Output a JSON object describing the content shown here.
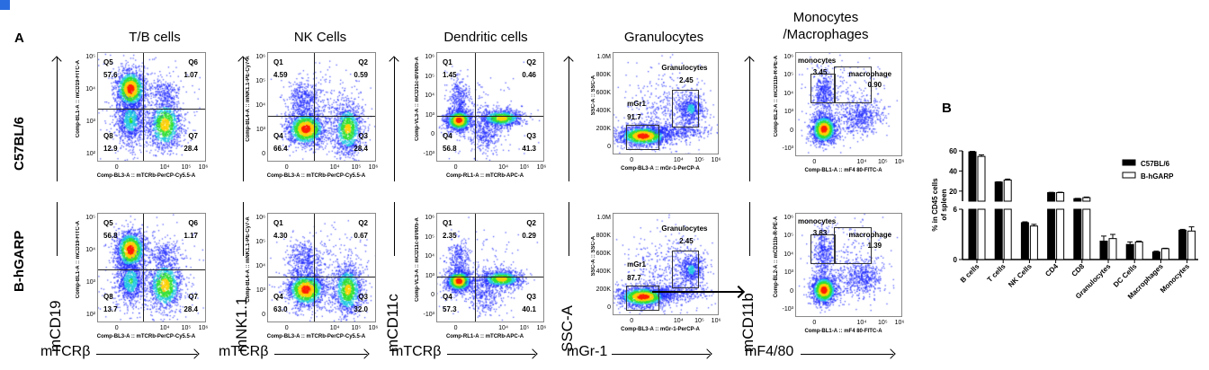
{
  "panels": {
    "a": "A",
    "b": "B"
  },
  "rows": [
    "C57BL/6",
    "B-hGARP"
  ],
  "columns": [
    {
      "title": "T/B cells",
      "ylabel": "mCD19",
      "xlabel": "mTCRβ",
      "x_axis": "Comp-BL3-A :: mTCRb-PerCP-Cy5.5-A",
      "y_axis": "Comp-BL1-A :: mCD19-FITC-A",
      "xticks": [
        "0",
        "10⁴",
        "10⁵",
        "10⁶"
      ],
      "yticks": [
        "10⁵",
        "10⁴",
        "10³",
        "10²"
      ],
      "gates": [
        [
          {
            "name": "Q5",
            "value": "57.6"
          },
          {
            "name": "Q6",
            "value": "1.07"
          },
          {
            "name": "Q8",
            "value": "12.9"
          },
          {
            "name": "Q7",
            "value": "28.4"
          }
        ],
        [
          {
            "name": "Q5",
            "value": "56.8"
          },
          {
            "name": "Q6",
            "value": "1.17"
          },
          {
            "name": "Q8",
            "value": "13.7"
          },
          {
            "name": "Q7",
            "value": "28.4"
          }
        ]
      ]
    },
    {
      "title": "NK Cells",
      "ylabel": "mNK1.1",
      "xlabel": "mTCRβ",
      "x_axis": "Comp-BL3-A :: mTCRb-PerCP-Cy5.5-A",
      "y_axis": "Comp-BL4-A :: mNK1.1-PE-Cy7-A",
      "xticks": [
        "0",
        "10⁴",
        "10⁵",
        "10⁶"
      ],
      "yticks": [
        "10⁶",
        "10⁵",
        "10⁴",
        "10³",
        "0"
      ],
      "gates": [
        [
          {
            "name": "Q1",
            "value": "4.59"
          },
          {
            "name": "Q2",
            "value": "0.59"
          },
          {
            "name": "Q4",
            "value": "66.4"
          },
          {
            "name": "Q3",
            "value": "28.4"
          }
        ],
        [
          {
            "name": "Q1",
            "value": "4.30"
          },
          {
            "name": "Q2",
            "value": "0.67"
          },
          {
            "name": "Q4",
            "value": "63.0"
          },
          {
            "name": "Q3",
            "value": "32.0"
          }
        ]
      ]
    },
    {
      "title": "Dendritic cells",
      "ylabel": "mCD11c",
      "xlabel": "mTCRβ",
      "x_axis": "Comp-RL1-A :: mTCRb-APC-A",
      "y_axis": "Comp-VL3-A :: mCD11c-BV605-A",
      "xticks": [
        "0",
        "10⁴",
        "10⁵",
        "10⁶"
      ],
      "yticks": [
        "10⁶",
        "10⁵",
        "10⁴",
        "10³",
        "0",
        "-10³"
      ],
      "gates": [
        [
          {
            "name": "Q1",
            "value": "1.45"
          },
          {
            "name": "Q2",
            "value": "0.46"
          },
          {
            "name": "Q4",
            "value": "56.8"
          },
          {
            "name": "Q3",
            "value": "41.3"
          }
        ],
        [
          {
            "name": "Q1",
            "value": "2.35"
          },
          {
            "name": "Q2",
            "value": "0.29"
          },
          {
            "name": "Q4",
            "value": "57.3"
          },
          {
            "name": "Q3",
            "value": "40.1"
          }
        ]
      ]
    },
    {
      "title": "Granulocytes",
      "ylabel": "SSC-A",
      "xlabel": "mGr-1",
      "x_axis": "Comp-BL3-A :: mGr-1-PerCP-A",
      "y_axis": "SSC-A :: SSC-A",
      "xticks": [
        "0",
        "10⁴",
        "10⁵",
        "10⁶"
      ],
      "yticks": [
        "1.0M",
        "800K",
        "600K",
        "400K",
        "200K",
        "0"
      ],
      "gates": [
        [
          {
            "name": "Granulocytes",
            "value": "2.45"
          },
          {
            "name": "mGr1",
            "value": "91.7"
          }
        ],
        [
          {
            "name": "Granulocytes",
            "value": "2.45"
          },
          {
            "name": "mGr1",
            "value": "87.7"
          }
        ]
      ]
    },
    {
      "title": "Monocytes\n/Macrophages",
      "title_lines": [
        "Monocytes",
        "/Macrophages"
      ],
      "ylabel": "mCD11b",
      "xlabel": "mF4/80",
      "x_axis": "Comp-BL1-A :: mF4 80-FITC-A",
      "y_axis": "Comp-BL2-A :: mCD11b-R-PE-A",
      "xticks": [
        "0",
        "10⁴",
        "10⁵",
        "10⁶"
      ],
      "yticks": [
        "10⁶",
        "10⁵",
        "10⁴",
        "10³",
        "0",
        "-10³"
      ],
      "gates": [
        [
          {
            "name": "monocytes",
            "value": "3.45"
          },
          {
            "name": "macrophage",
            "value": "0.90"
          }
        ],
        [
          {
            "name": "monocytes",
            "value": "3.83"
          },
          {
            "name": "macrophage",
            "value": "1.39"
          }
        ]
      ]
    }
  ],
  "colors": {
    "c57": "#000000",
    "hgarp": "#ffffff",
    "density_low": "#1a1aff",
    "density_high": "#ff2000"
  },
  "chart_data": {
    "type": "bar",
    "title": "",
    "ylabel": "% in CD45 cells of spleen",
    "ylabel_lines": [
      "% in CD45 cells",
      "of spleen"
    ],
    "categories": [
      "B cells",
      "T cells",
      "NK Cells",
      "CD4",
      "CD8",
      "Granulocytes",
      "DC Cells",
      "Macrophages",
      "Monocytes"
    ],
    "series": [
      {
        "name": "C57BL/6",
        "values": [
          59,
          29,
          4.4,
          18.5,
          12.5,
          2.2,
          1.8,
          0.9,
          3.5
        ],
        "errors": [
          0.5,
          0.3,
          0.1,
          0.3,
          0.3,
          0.6,
          0.3,
          0.1,
          0.1
        ]
      },
      {
        "name": "B-hGARP",
        "values": [
          54.5,
          31,
          4.0,
          18.5,
          13.5,
          2.5,
          2.1,
          1.3,
          3.4
        ],
        "errors": [
          1.5,
          1.0,
          0.2,
          0.4,
          0.6,
          0.5,
          0.1,
          0.05,
          0.5
        ]
      }
    ],
    "yaxis_break": true,
    "ylim_lower": [
      0,
      6
    ],
    "ylim_upper": [
      10,
      60
    ],
    "yticks": [
      "0",
      "6",
      "20",
      "40",
      "60"
    ],
    "legend": "top-right"
  }
}
